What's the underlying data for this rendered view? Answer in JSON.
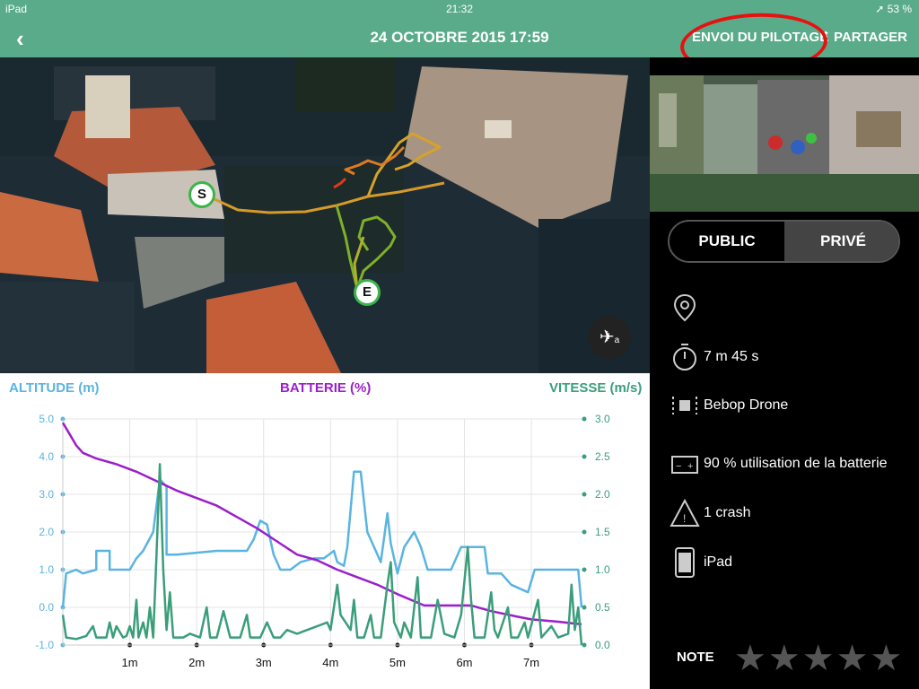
{
  "status": {
    "device": "iPad",
    "time": "21:32",
    "battery": "53 %"
  },
  "nav": {
    "back_icon": "chevron-left-icon",
    "title": "24 OCTOBRE 2015 17:59",
    "send_label": "ENVOI DU PILOTAGE",
    "separator": "|",
    "share_label": "PARTAGER"
  },
  "map": {
    "start_label": "S",
    "end_label": "E",
    "satellite_label": "a"
  },
  "toggle": {
    "public_label": "PUBLIC",
    "private_label": "PRIVÉ",
    "selected": "PRIVÉ"
  },
  "info": {
    "duration": "7 m 45 s",
    "drone": "Bebop Drone",
    "battery": "90 % utilisation de la batterie",
    "crash": "1 crash",
    "device": "iPad"
  },
  "rating": {
    "label": "NOTE",
    "stars": 5,
    "value": 0
  },
  "chart_data": {
    "type": "line",
    "title_left": "ALTITUDE (m)",
    "title_center": "BATTERIE (%)",
    "title_right": "VITESSE (m/s)",
    "x_ticks": [
      "1m",
      "2m",
      "3m",
      "4m",
      "5m",
      "6m",
      "7m"
    ],
    "xlim": [
      0,
      7.75
    ],
    "left_axis": {
      "ticks": [
        "5.0",
        "4.0",
        "3.0",
        "2.0",
        "1.0",
        "0.0",
        "-1.0"
      ],
      "ylim": [
        -1,
        5
      ]
    },
    "right_axis": {
      "ticks": [
        "3.0",
        "2.5",
        "2.0",
        "1.5",
        "1.0",
        "0.5",
        "0.0"
      ],
      "ylim": [
        0,
        3
      ]
    },
    "colors": {
      "altitude": "#5ab4e0",
      "battery": "#9b1fc9",
      "speed": "#3a9e7a",
      "left_text": "#5ab4e0",
      "center_text": "#9b1fc9",
      "right_text": "#3a9e7a"
    },
    "series": [
      {
        "name": "ALTITUDE (m)",
        "axis": "left",
        "points": [
          [
            0,
            0
          ],
          [
            0.05,
            0.9
          ],
          [
            0.2,
            1.0
          ],
          [
            0.3,
            0.9
          ],
          [
            0.5,
            1.0
          ],
          [
            0.5,
            1.5
          ],
          [
            0.7,
            1.5
          ],
          [
            0.7,
            1.0
          ],
          [
            1.0,
            1.0
          ],
          [
            1.1,
            1.3
          ],
          [
            1.2,
            1.5
          ],
          [
            1.35,
            2.0
          ],
          [
            1.45,
            3.4
          ],
          [
            1.55,
            3.2
          ],
          [
            1.55,
            1.4
          ],
          [
            1.7,
            1.4
          ],
          [
            2.0,
            1.45
          ],
          [
            2.3,
            1.5
          ],
          [
            2.6,
            1.5
          ],
          [
            2.75,
            1.5
          ],
          [
            2.85,
            1.8
          ],
          [
            2.95,
            2.3
          ],
          [
            3.05,
            2.2
          ],
          [
            3.15,
            1.4
          ],
          [
            3.25,
            1.0
          ],
          [
            3.4,
            1.0
          ],
          [
            3.55,
            1.2
          ],
          [
            3.75,
            1.3
          ],
          [
            3.9,
            1.3
          ],
          [
            4.05,
            1.5
          ],
          [
            4.1,
            1.2
          ],
          [
            4.2,
            1.1
          ],
          [
            4.25,
            1.6
          ],
          [
            4.35,
            3.6
          ],
          [
            4.45,
            3.6
          ],
          [
            4.55,
            2.0
          ],
          [
            4.65,
            1.6
          ],
          [
            4.75,
            1.2
          ],
          [
            4.85,
            2.5
          ],
          [
            4.9,
            1.7
          ],
          [
            5.0,
            0.9
          ],
          [
            5.1,
            1.6
          ],
          [
            5.25,
            2.0
          ],
          [
            5.35,
            1.6
          ],
          [
            5.45,
            1.0
          ],
          [
            5.6,
            1.0
          ],
          [
            5.8,
            1.0
          ],
          [
            5.95,
            1.6
          ],
          [
            6.05,
            1.6
          ],
          [
            6.3,
            1.6
          ],
          [
            6.35,
            0.9
          ],
          [
            6.55,
            0.9
          ],
          [
            6.7,
            0.6
          ],
          [
            6.95,
            0.4
          ],
          [
            7.05,
            1.0
          ],
          [
            7.4,
            1.0
          ],
          [
            7.7,
            1.0
          ],
          [
            7.75,
            0
          ]
        ]
      },
      {
        "name": "BATTERIE (%)",
        "axis": "left",
        "points": [
          [
            0,
            4.9
          ],
          [
            0.1,
            4.6
          ],
          [
            0.2,
            4.3
          ],
          [
            0.3,
            4.1
          ],
          [
            0.5,
            3.95
          ],
          [
            0.8,
            3.8
          ],
          [
            1.1,
            3.6
          ],
          [
            1.4,
            3.35
          ],
          [
            1.7,
            3.1
          ],
          [
            2.0,
            2.9
          ],
          [
            2.3,
            2.7
          ],
          [
            2.6,
            2.4
          ],
          [
            2.9,
            2.1
          ],
          [
            3.2,
            1.75
          ],
          [
            3.5,
            1.4
          ],
          [
            3.8,
            1.25
          ],
          [
            4.1,
            1.0
          ],
          [
            4.4,
            0.8
          ],
          [
            4.7,
            0.6
          ],
          [
            5.0,
            0.35
          ],
          [
            5.4,
            0.05
          ],
          [
            5.45,
            0.05
          ],
          [
            5.8,
            0.05
          ],
          [
            6.1,
            0.05
          ],
          [
            6.4,
            -0.1
          ],
          [
            6.8,
            -0.25
          ],
          [
            7.0,
            -0.32
          ],
          [
            7.4,
            -0.38
          ],
          [
            7.75,
            -0.45
          ]
        ]
      },
      {
        "name": "VITESSE (m/s)",
        "axis": "right",
        "points": [
          [
            0,
            0.4
          ],
          [
            0.05,
            0.1
          ],
          [
            0.2,
            0.08
          ],
          [
            0.35,
            0.12
          ],
          [
            0.45,
            0.25
          ],
          [
            0.5,
            0.1
          ],
          [
            0.65,
            0.1
          ],
          [
            0.7,
            0.3
          ],
          [
            0.75,
            0.1
          ],
          [
            0.8,
            0.25
          ],
          [
            0.9,
            0.1
          ],
          [
            0.95,
            0.12
          ],
          [
            1.0,
            0.25
          ],
          [
            1.05,
            0.1
          ],
          [
            1.1,
            0.6
          ],
          [
            1.13,
            0.1
          ],
          [
            1.2,
            0.3
          ],
          [
            1.25,
            0.1
          ],
          [
            1.3,
            0.5
          ],
          [
            1.35,
            0.1
          ],
          [
            1.4,
            1.2
          ],
          [
            1.45,
            2.4
          ],
          [
            1.5,
            1.0
          ],
          [
            1.55,
            0.2
          ],
          [
            1.6,
            0.7
          ],
          [
            1.65,
            0.1
          ],
          [
            1.8,
            0.1
          ],
          [
            1.9,
            0.15
          ],
          [
            2.05,
            0.1
          ],
          [
            2.15,
            0.5
          ],
          [
            2.2,
            0.1
          ],
          [
            2.3,
            0.1
          ],
          [
            2.4,
            0.45
          ],
          [
            2.5,
            0.1
          ],
          [
            2.65,
            0.1
          ],
          [
            2.75,
            0.4
          ],
          [
            2.8,
            0.1
          ],
          [
            2.95,
            0.1
          ],
          [
            3.05,
            0.3
          ],
          [
            3.15,
            0.1
          ],
          [
            3.25,
            0.1
          ],
          [
            3.35,
            0.2
          ],
          [
            3.5,
            0.15
          ],
          [
            3.65,
            0.2
          ],
          [
            3.8,
            0.25
          ],
          [
            3.95,
            0.3
          ],
          [
            4.0,
            0.2
          ],
          [
            4.1,
            0.8
          ],
          [
            4.15,
            0.4
          ],
          [
            4.3,
            0.2
          ],
          [
            4.35,
            0.6
          ],
          [
            4.4,
            0.1
          ],
          [
            4.5,
            0.1
          ],
          [
            4.6,
            0.4
          ],
          [
            4.65,
            0.1
          ],
          [
            4.75,
            0.1
          ],
          [
            4.85,
            0.8
          ],
          [
            4.9,
            1.1
          ],
          [
            4.95,
            0.3
          ],
          [
            5.05,
            0.1
          ],
          [
            5.1,
            0.3
          ],
          [
            5.2,
            0.1
          ],
          [
            5.3,
            0.9
          ],
          [
            5.35,
            0.1
          ],
          [
            5.5,
            0.1
          ],
          [
            5.6,
            0.6
          ],
          [
            5.7,
            0.15
          ],
          [
            5.85,
            0.1
          ],
          [
            5.95,
            0.4
          ],
          [
            6.05,
            1.3
          ],
          [
            6.1,
            0.6
          ],
          [
            6.15,
            0.1
          ],
          [
            6.3,
            0.1
          ],
          [
            6.4,
            0.7
          ],
          [
            6.45,
            0.2
          ],
          [
            6.5,
            0.1
          ],
          [
            6.65,
            0.5
          ],
          [
            6.7,
            0.1
          ],
          [
            6.8,
            0.1
          ],
          [
            6.9,
            0.3
          ],
          [
            6.95,
            0.1
          ],
          [
            7.1,
            0.6
          ],
          [
            7.15,
            0.1
          ],
          [
            7.3,
            0.25
          ],
          [
            7.4,
            0.1
          ],
          [
            7.55,
            0.15
          ],
          [
            7.6,
            0.8
          ],
          [
            7.65,
            0.2
          ],
          [
            7.7,
            0.5
          ],
          [
            7.75,
            0
          ]
        ]
      }
    ]
  }
}
